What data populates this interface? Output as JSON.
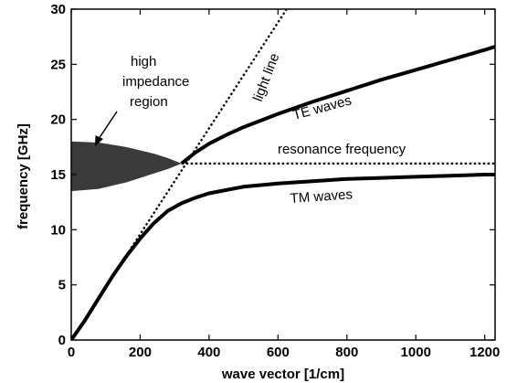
{
  "chart_data": {
    "type": "line",
    "title": "",
    "xlabel": "wave vector [1/cm]",
    "ylabel": "frequency [GHz]",
    "xlim": [
      0,
      1230
    ],
    "ylim": [
      0,
      30
    ],
    "xticks": [
      0,
      200,
      400,
      600,
      800,
      1000,
      1200
    ],
    "yticks": [
      0,
      5,
      10,
      15,
      20,
      25,
      30
    ],
    "grid": false,
    "series": [
      {
        "name": "TE waves",
        "style": "solid",
        "x": [
          320,
          360,
          400,
          450,
          500,
          550,
          600,
          700,
          800,
          900,
          1000,
          1100,
          1200,
          1230
        ],
        "y": [
          16.0,
          17.0,
          17.8,
          18.6,
          19.3,
          19.9,
          20.5,
          21.6,
          22.6,
          23.6,
          24.5,
          25.4,
          26.3,
          26.6
        ]
      },
      {
        "name": "TM waves",
        "style": "solid",
        "x": [
          0,
          40,
          80,
          120,
          160,
          200,
          240,
          280,
          320,
          360,
          400,
          450,
          500,
          600,
          700,
          800,
          900,
          1000,
          1100,
          1200,
          1230
        ],
        "y": [
          0,
          1.8,
          3.8,
          5.8,
          7.6,
          9.2,
          10.6,
          11.7,
          12.4,
          12.9,
          13.3,
          13.6,
          13.9,
          14.2,
          14.4,
          14.6,
          14.7,
          14.8,
          14.9,
          15.0,
          15.0
        ]
      },
      {
        "name": "light line",
        "style": "dotted",
        "x": [
          0,
          625
        ],
        "y": [
          0,
          30
        ]
      },
      {
        "name": "resonance frequency",
        "style": "dotted",
        "x": [
          320,
          1230
        ],
        "y": [
          16,
          16
        ]
      }
    ],
    "shaded_region": {
      "name": "high impedance region",
      "x": [
        0,
        80,
        160,
        240,
        280,
        320
      ],
      "y_upper": [
        18.0,
        17.9,
        17.5,
        16.9,
        16.5,
        16.0
      ],
      "y_lower": [
        13.5,
        13.7,
        14.3,
        15.1,
        15.5,
        16.0
      ]
    },
    "annotations": [
      {
        "id": "high",
        "text": "high"
      },
      {
        "id": "impedance",
        "text": "impedance"
      },
      {
        "id": "region",
        "text": "region"
      },
      {
        "id": "te",
        "text": "TE waves"
      },
      {
        "id": "tm",
        "text": "TM waves"
      },
      {
        "id": "resonance",
        "text": "resonance frequency"
      },
      {
        "id": "light",
        "text": "light line"
      }
    ]
  }
}
